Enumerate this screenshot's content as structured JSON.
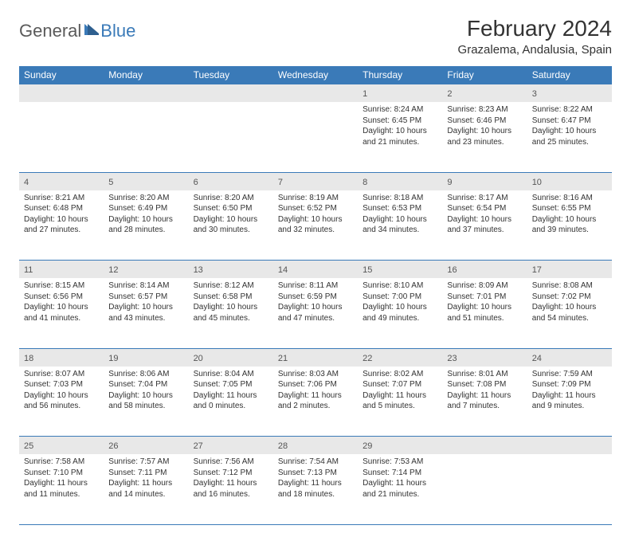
{
  "logo": {
    "general": "General",
    "blue": "Blue"
  },
  "title": "February 2024",
  "location": "Grazalema, Andalusia, Spain",
  "colors": {
    "header_bg": "#3a7ab8",
    "header_text": "#ffffff",
    "daynum_bg": "#e8e8e8",
    "border": "#3a7ab8",
    "text": "#333333",
    "logo_gray": "#5a5a5a",
    "logo_blue": "#3a7ab8"
  },
  "day_headers": [
    "Sunday",
    "Monday",
    "Tuesday",
    "Wednesday",
    "Thursday",
    "Friday",
    "Saturday"
  ],
  "weeks": [
    [
      null,
      null,
      null,
      null,
      {
        "n": "1",
        "sr": "Sunrise: 8:24 AM",
        "ss": "Sunset: 6:45 PM",
        "dl1": "Daylight: 10 hours",
        "dl2": "and 21 minutes."
      },
      {
        "n": "2",
        "sr": "Sunrise: 8:23 AM",
        "ss": "Sunset: 6:46 PM",
        "dl1": "Daylight: 10 hours",
        "dl2": "and 23 minutes."
      },
      {
        "n": "3",
        "sr": "Sunrise: 8:22 AM",
        "ss": "Sunset: 6:47 PM",
        "dl1": "Daylight: 10 hours",
        "dl2": "and 25 minutes."
      }
    ],
    [
      {
        "n": "4",
        "sr": "Sunrise: 8:21 AM",
        "ss": "Sunset: 6:48 PM",
        "dl1": "Daylight: 10 hours",
        "dl2": "and 27 minutes."
      },
      {
        "n": "5",
        "sr": "Sunrise: 8:20 AM",
        "ss": "Sunset: 6:49 PM",
        "dl1": "Daylight: 10 hours",
        "dl2": "and 28 minutes."
      },
      {
        "n": "6",
        "sr": "Sunrise: 8:20 AM",
        "ss": "Sunset: 6:50 PM",
        "dl1": "Daylight: 10 hours",
        "dl2": "and 30 minutes."
      },
      {
        "n": "7",
        "sr": "Sunrise: 8:19 AM",
        "ss": "Sunset: 6:52 PM",
        "dl1": "Daylight: 10 hours",
        "dl2": "and 32 minutes."
      },
      {
        "n": "8",
        "sr": "Sunrise: 8:18 AM",
        "ss": "Sunset: 6:53 PM",
        "dl1": "Daylight: 10 hours",
        "dl2": "and 34 minutes."
      },
      {
        "n": "9",
        "sr": "Sunrise: 8:17 AM",
        "ss": "Sunset: 6:54 PM",
        "dl1": "Daylight: 10 hours",
        "dl2": "and 37 minutes."
      },
      {
        "n": "10",
        "sr": "Sunrise: 8:16 AM",
        "ss": "Sunset: 6:55 PM",
        "dl1": "Daylight: 10 hours",
        "dl2": "and 39 minutes."
      }
    ],
    [
      {
        "n": "11",
        "sr": "Sunrise: 8:15 AM",
        "ss": "Sunset: 6:56 PM",
        "dl1": "Daylight: 10 hours",
        "dl2": "and 41 minutes."
      },
      {
        "n": "12",
        "sr": "Sunrise: 8:14 AM",
        "ss": "Sunset: 6:57 PM",
        "dl1": "Daylight: 10 hours",
        "dl2": "and 43 minutes."
      },
      {
        "n": "13",
        "sr": "Sunrise: 8:12 AM",
        "ss": "Sunset: 6:58 PM",
        "dl1": "Daylight: 10 hours",
        "dl2": "and 45 minutes."
      },
      {
        "n": "14",
        "sr": "Sunrise: 8:11 AM",
        "ss": "Sunset: 6:59 PM",
        "dl1": "Daylight: 10 hours",
        "dl2": "and 47 minutes."
      },
      {
        "n": "15",
        "sr": "Sunrise: 8:10 AM",
        "ss": "Sunset: 7:00 PM",
        "dl1": "Daylight: 10 hours",
        "dl2": "and 49 minutes."
      },
      {
        "n": "16",
        "sr": "Sunrise: 8:09 AM",
        "ss": "Sunset: 7:01 PM",
        "dl1": "Daylight: 10 hours",
        "dl2": "and 51 minutes."
      },
      {
        "n": "17",
        "sr": "Sunrise: 8:08 AM",
        "ss": "Sunset: 7:02 PM",
        "dl1": "Daylight: 10 hours",
        "dl2": "and 54 minutes."
      }
    ],
    [
      {
        "n": "18",
        "sr": "Sunrise: 8:07 AM",
        "ss": "Sunset: 7:03 PM",
        "dl1": "Daylight: 10 hours",
        "dl2": "and 56 minutes."
      },
      {
        "n": "19",
        "sr": "Sunrise: 8:06 AM",
        "ss": "Sunset: 7:04 PM",
        "dl1": "Daylight: 10 hours",
        "dl2": "and 58 minutes."
      },
      {
        "n": "20",
        "sr": "Sunrise: 8:04 AM",
        "ss": "Sunset: 7:05 PM",
        "dl1": "Daylight: 11 hours",
        "dl2": "and 0 minutes."
      },
      {
        "n": "21",
        "sr": "Sunrise: 8:03 AM",
        "ss": "Sunset: 7:06 PM",
        "dl1": "Daylight: 11 hours",
        "dl2": "and 2 minutes."
      },
      {
        "n": "22",
        "sr": "Sunrise: 8:02 AM",
        "ss": "Sunset: 7:07 PM",
        "dl1": "Daylight: 11 hours",
        "dl2": "and 5 minutes."
      },
      {
        "n": "23",
        "sr": "Sunrise: 8:01 AM",
        "ss": "Sunset: 7:08 PM",
        "dl1": "Daylight: 11 hours",
        "dl2": "and 7 minutes."
      },
      {
        "n": "24",
        "sr": "Sunrise: 7:59 AM",
        "ss": "Sunset: 7:09 PM",
        "dl1": "Daylight: 11 hours",
        "dl2": "and 9 minutes."
      }
    ],
    [
      {
        "n": "25",
        "sr": "Sunrise: 7:58 AM",
        "ss": "Sunset: 7:10 PM",
        "dl1": "Daylight: 11 hours",
        "dl2": "and 11 minutes."
      },
      {
        "n": "26",
        "sr": "Sunrise: 7:57 AM",
        "ss": "Sunset: 7:11 PM",
        "dl1": "Daylight: 11 hours",
        "dl2": "and 14 minutes."
      },
      {
        "n": "27",
        "sr": "Sunrise: 7:56 AM",
        "ss": "Sunset: 7:12 PM",
        "dl1": "Daylight: 11 hours",
        "dl2": "and 16 minutes."
      },
      {
        "n": "28",
        "sr": "Sunrise: 7:54 AM",
        "ss": "Sunset: 7:13 PM",
        "dl1": "Daylight: 11 hours",
        "dl2": "and 18 minutes."
      },
      {
        "n": "29",
        "sr": "Sunrise: 7:53 AM",
        "ss": "Sunset: 7:14 PM",
        "dl1": "Daylight: 11 hours",
        "dl2": "and 21 minutes."
      },
      null,
      null
    ]
  ]
}
